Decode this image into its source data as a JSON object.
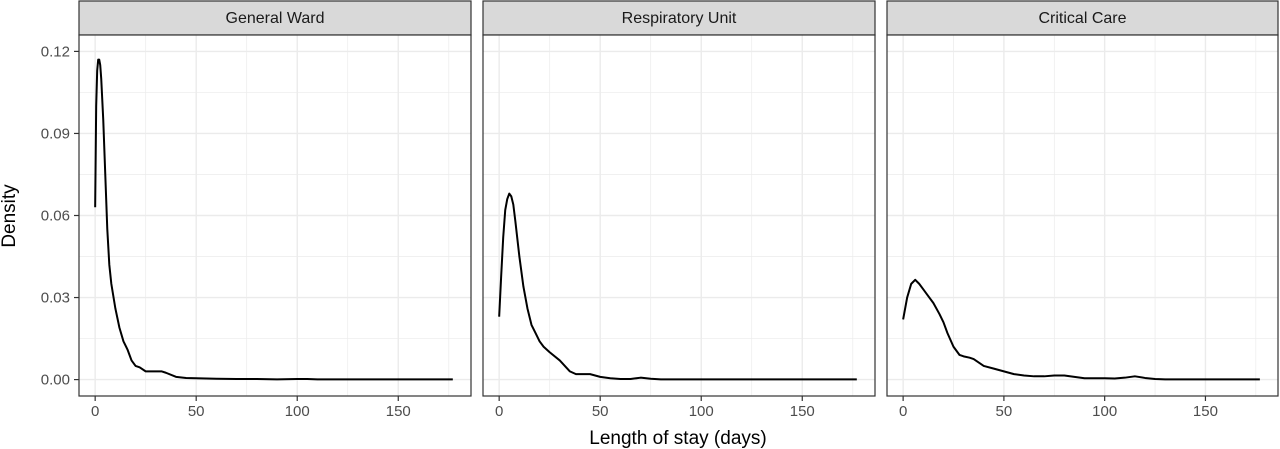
{
  "colors": {
    "strip_fill": "#d9d9d9",
    "panel_border": "#333333",
    "grid": "#ebebeb",
    "line": "#000000"
  },
  "chart_data": {
    "type": "line",
    "xlabel": "Length of stay (days)",
    "ylabel": "Density",
    "xlim": [
      -8,
      186
    ],
    "ylim": [
      -0.006,
      0.126
    ],
    "x_ticks": [
      0,
      50,
      100,
      150
    ],
    "x_tick_labels": [
      "0",
      "50",
      "100",
      "150"
    ],
    "y_ticks": [
      0.0,
      0.03,
      0.06,
      0.09,
      0.12
    ],
    "y_tick_labels": [
      "0.00",
      "0.03",
      "0.06",
      "0.09",
      "0.12"
    ],
    "grid": true,
    "panels": [
      {
        "title": "General Ward",
        "x": [
          0,
          0.5,
          1,
          1.5,
          2,
          2.5,
          3,
          4,
          5,
          6,
          7,
          8,
          10,
          12,
          14,
          16,
          18,
          20,
          22,
          25,
          28,
          30,
          33,
          35,
          40,
          45,
          50,
          60,
          70,
          80,
          90,
          100,
          105,
          110,
          120,
          130,
          140,
          150,
          160,
          170,
          177
        ],
        "y": [
          0.063,
          0.1,
          0.113,
          0.117,
          0.117,
          0.115,
          0.11,
          0.095,
          0.075,
          0.055,
          0.042,
          0.035,
          0.026,
          0.019,
          0.014,
          0.011,
          0.007,
          0.005,
          0.0045,
          0.003,
          0.003,
          0.003,
          0.003,
          0.0025,
          0.001,
          0.0006,
          0.0005,
          0.0003,
          0.0002,
          0.0002,
          0.0001,
          0.0002,
          0.0002,
          0.0001,
          0.0001,
          0.0001,
          0.0001,
          0.0001,
          0.0001,
          0.0001,
          0.0001
        ]
      },
      {
        "title": "Respiratory Unit",
        "x": [
          0,
          1,
          2,
          3,
          4,
          5,
          6,
          7,
          8,
          10,
          12,
          14,
          16,
          18,
          20,
          22,
          25,
          30,
          35,
          38,
          40,
          45,
          50,
          55,
          60,
          65,
          70,
          75,
          80,
          90,
          100,
          120,
          140,
          160,
          177
        ],
        "y": [
          0.023,
          0.038,
          0.052,
          0.062,
          0.066,
          0.068,
          0.067,
          0.064,
          0.058,
          0.045,
          0.034,
          0.026,
          0.02,
          0.017,
          0.014,
          0.012,
          0.01,
          0.007,
          0.003,
          0.002,
          0.002,
          0.002,
          0.001,
          0.0005,
          0.0002,
          0.0002,
          0.0007,
          0.0003,
          0.0001,
          0.0001,
          0.0001,
          0.0001,
          0.0001,
          0.0001,
          0.0001
        ]
      },
      {
        "title": "Critical Care",
        "x": [
          0,
          2,
          4,
          6,
          8,
          10,
          12,
          15,
          18,
          20,
          22,
          25,
          28,
          30,
          33,
          35,
          38,
          40,
          45,
          50,
          55,
          60,
          65,
          70,
          75,
          80,
          85,
          90,
          95,
          100,
          105,
          110,
          115,
          120,
          125,
          130,
          140,
          150,
          160,
          177
        ],
        "y": [
          0.022,
          0.03,
          0.035,
          0.0365,
          0.035,
          0.033,
          0.031,
          0.028,
          0.024,
          0.021,
          0.017,
          0.012,
          0.009,
          0.0085,
          0.008,
          0.0075,
          0.006,
          0.005,
          0.004,
          0.003,
          0.002,
          0.0015,
          0.0012,
          0.0012,
          0.0015,
          0.0015,
          0.001,
          0.0005,
          0.0005,
          0.0005,
          0.0004,
          0.0007,
          0.0012,
          0.0006,
          0.0002,
          0.0001,
          0.0001,
          0.0001,
          0.0001,
          0.0001
        ]
      }
    ]
  }
}
